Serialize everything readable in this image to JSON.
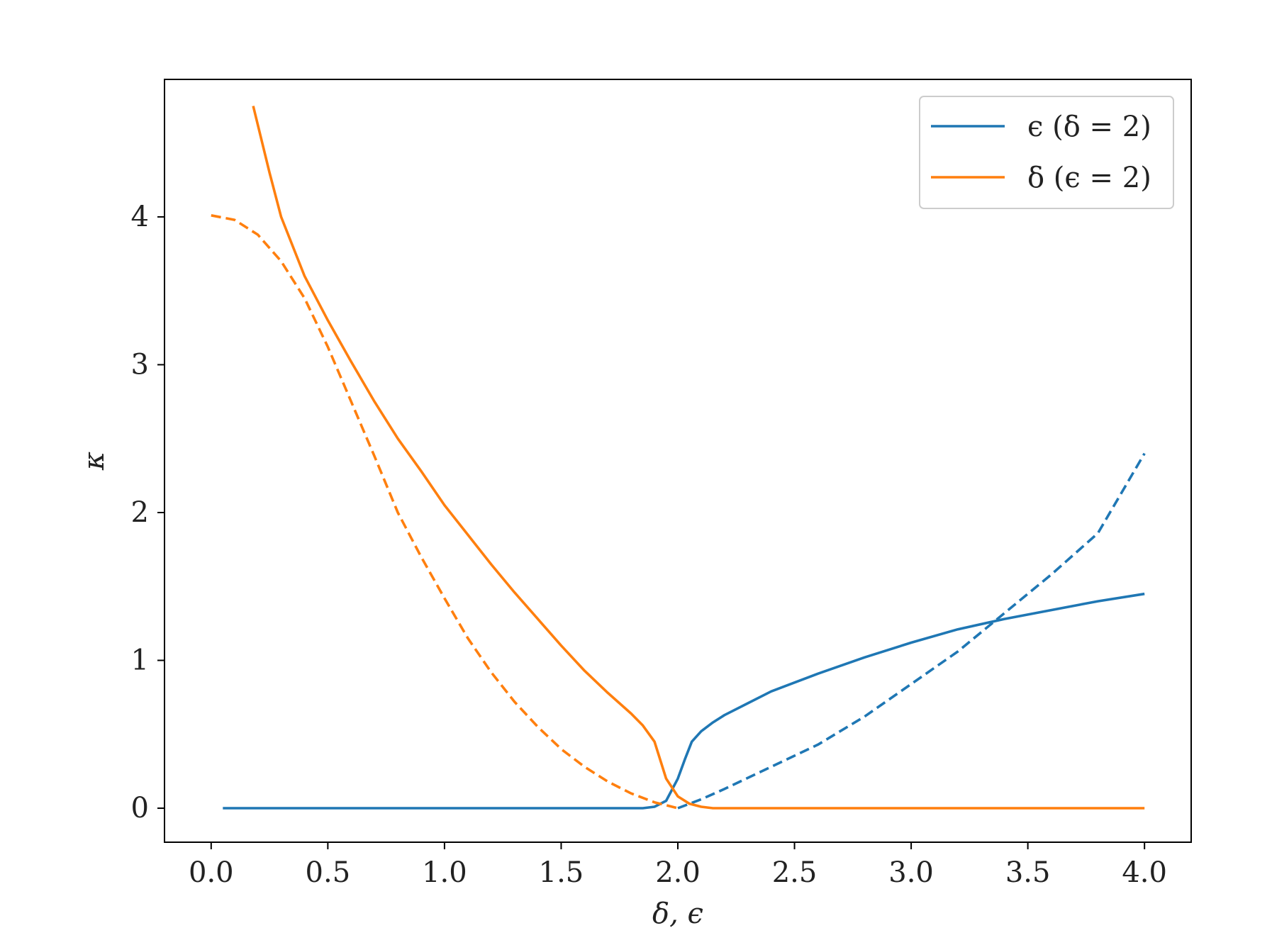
{
  "chart_data": {
    "type": "line",
    "title": "",
    "xlabel": "δ, ϵ",
    "ylabel": "κ",
    "xlim": [
      -0.2,
      4.2
    ],
    "ylim": [
      -0.23,
      4.93
    ],
    "xticks": [
      0.0,
      0.5,
      1.0,
      1.5,
      2.0,
      2.5,
      3.0,
      3.5,
      4.0
    ],
    "xtick_labels": [
      "0.0",
      "0.5",
      "1.0",
      "1.5",
      "2.0",
      "2.5",
      "3.0",
      "3.5",
      "4.0"
    ],
    "yticks": [
      0,
      1,
      2,
      3,
      4
    ],
    "ytick_labels": [
      "0",
      "1",
      "2",
      "3",
      "4"
    ],
    "grid": false,
    "legend_position": "top-right",
    "colors": {
      "blue": "#1f77b4",
      "orange": "#ff7f0e"
    },
    "series": [
      {
        "name": "ϵ (δ = 2)",
        "color": "#1f77b4",
        "style": "solid",
        "x": [
          0.05,
          0.5,
          1.0,
          1.5,
          1.85,
          1.9,
          1.95,
          2.0,
          2.03,
          2.06,
          2.1,
          2.15,
          2.2,
          2.3,
          2.4,
          2.5,
          2.6,
          2.8,
          3.0,
          3.2,
          3.4,
          3.6,
          3.8,
          4.0
        ],
        "y": [
          0.0,
          0.0,
          0.0,
          0.0,
          0.0,
          0.01,
          0.05,
          0.2,
          0.33,
          0.45,
          0.52,
          0.58,
          0.63,
          0.71,
          0.79,
          0.85,
          0.91,
          1.02,
          1.12,
          1.21,
          1.28,
          1.34,
          1.4,
          1.45
        ]
      },
      {
        "name": "",
        "color": "#1f77b4",
        "style": "dashed",
        "x": [
          2.0,
          2.1,
          2.2,
          2.4,
          2.6,
          2.8,
          3.0,
          3.2,
          3.4,
          3.6,
          3.8,
          4.0
        ],
        "y": [
          0.0,
          0.06,
          0.13,
          0.28,
          0.43,
          0.62,
          0.84,
          1.06,
          1.32,
          1.58,
          1.86,
          2.4
        ]
      },
      {
        "name": "δ (ϵ = 2)",
        "color": "#ff7f0e",
        "style": "solid",
        "x": [
          0.18,
          0.25,
          0.3,
          0.4,
          0.5,
          0.6,
          0.7,
          0.8,
          0.9,
          1.0,
          1.1,
          1.2,
          1.3,
          1.4,
          1.5,
          1.6,
          1.7,
          1.8,
          1.85,
          1.9,
          1.95,
          2.0,
          2.05,
          2.1,
          2.15,
          2.2,
          3.0,
          4.0
        ],
        "y": [
          4.75,
          4.3,
          4.0,
          3.6,
          3.3,
          3.02,
          2.75,
          2.5,
          2.28,
          2.05,
          1.85,
          1.65,
          1.46,
          1.28,
          1.1,
          0.93,
          0.78,
          0.64,
          0.56,
          0.45,
          0.2,
          0.08,
          0.03,
          0.01,
          0.0,
          0.0,
          0.0,
          0.0
        ]
      },
      {
        "name": "",
        "color": "#ff7f0e",
        "style": "dashed",
        "x": [
          0.0,
          0.1,
          0.2,
          0.3,
          0.4,
          0.5,
          0.6,
          0.7,
          0.8,
          0.9,
          1.0,
          1.1,
          1.2,
          1.3,
          1.4,
          1.5,
          1.6,
          1.7,
          1.8,
          1.9,
          2.0
        ],
        "y": [
          4.01,
          3.98,
          3.88,
          3.7,
          3.45,
          3.12,
          2.75,
          2.38,
          2.0,
          1.7,
          1.42,
          1.15,
          0.92,
          0.72,
          0.55,
          0.4,
          0.28,
          0.18,
          0.1,
          0.04,
          0.0
        ]
      }
    ]
  }
}
